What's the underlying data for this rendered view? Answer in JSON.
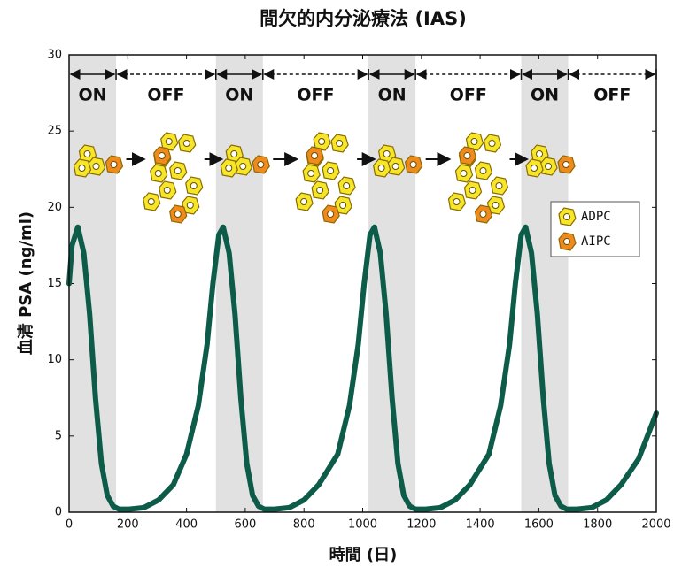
{
  "chart_data": {
    "type": "line",
    "title": "間欠的内分泌療法 (IAS)",
    "xlabel": "時間 (日)",
    "ylabel": "血清 PSA (ng/ml)",
    "xlim": [
      0,
      2000
    ],
    "ylim": [
      0,
      30
    ],
    "xticks": [
      0,
      200,
      400,
      600,
      800,
      1000,
      1200,
      1400,
      1600,
      1800,
      2000
    ],
    "yticks": [
      0,
      5,
      10,
      15,
      20,
      25,
      30
    ],
    "color": "#0d5c4a",
    "x": [
      0,
      10,
      30,
      50,
      70,
      90,
      110,
      130,
      150,
      170,
      205,
      255,
      305,
      355,
      400,
      440,
      470,
      490,
      510,
      525,
      545,
      565,
      585,
      605,
      625,
      645,
      665,
      700,
      750,
      800,
      850,
      915,
      955,
      985,
      1005,
      1025,
      1040,
      1060,
      1080,
      1100,
      1120,
      1140,
      1160,
      1180,
      1215,
      1265,
      1315,
      1365,
      1430,
      1470,
      1500,
      1520,
      1540,
      1555,
      1575,
      1595,
      1615,
      1635,
      1655,
      1675,
      1695,
      1730,
      1780,
      1830,
      1880,
      1940,
      2000
    ],
    "values": [
      15,
      17.5,
      18.7,
      17,
      13,
      7.5,
      3.2,
      1.1,
      0.4,
      0.2,
      0.2,
      0.3,
      0.8,
      1.8,
      3.8,
      7,
      11,
      15,
      18.2,
      18.7,
      17,
      13,
      7.5,
      3.2,
      1.1,
      0.4,
      0.2,
      0.2,
      0.3,
      0.8,
      1.8,
      3.8,
      7,
      11,
      15,
      18.2,
      18.7,
      17,
      13,
      7.5,
      3.2,
      1.1,
      0.4,
      0.2,
      0.2,
      0.3,
      0.8,
      1.8,
      3.8,
      7,
      11,
      15,
      18.2,
      18.7,
      17,
      13,
      7.5,
      3.2,
      1.1,
      0.4,
      0.2,
      0.2,
      0.3,
      0.8,
      1.8,
      3.5,
      6.5
    ],
    "phases": [
      {
        "label": "ON",
        "start": 0,
        "end": 160
      },
      {
        "label": "OFF",
        "start": 160,
        "end": 500
      },
      {
        "label": "ON",
        "start": 500,
        "end": 660
      },
      {
        "label": "OFF",
        "start": 660,
        "end": 1020
      },
      {
        "label": "ON",
        "start": 1020,
        "end": 1180
      },
      {
        "label": "OFF",
        "start": 1180,
        "end": 1540
      },
      {
        "label": "ON",
        "start": 1540,
        "end": 1700
      },
      {
        "label": "OFF",
        "start": 1700,
        "end": 2000
      }
    ],
    "legend": [
      {
        "name": "ADPC",
        "color": "#f5e62a"
      },
      {
        "name": "AIPC",
        "color": "#f08a1e"
      }
    ]
  }
}
